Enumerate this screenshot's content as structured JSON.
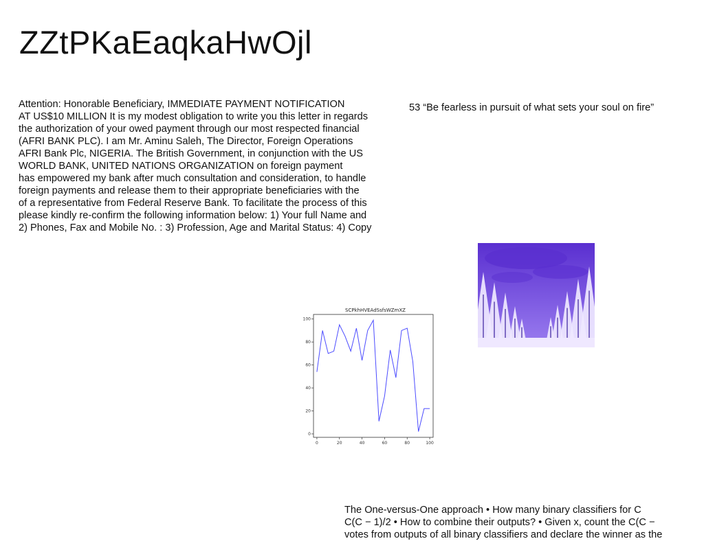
{
  "title": "ZZtPKaEaqkaHwOjl",
  "letter": {
    "lines": [
      "Attention: Honorable Beneficiary, IMMEDIATE PAYMENT NOTIFICATION",
      "AT US$10 MILLION It is my modest obligation to write you this letter in regards",
      "the authorization of your owed payment through our most respected financial",
      "(AFRI BANK PLC). I am Mr. Aminu Saleh, The Director, Foreign Operations",
      "AFRI Bank Plc, NIGERIA. The British Government, in conjunction with the US",
      "WORLD BANK, UNITED NATIONS ORGANIZATION on foreign payment",
      "has empowered my bank after much consultation and consideration, to handle",
      "foreign payments and release them to their appropriate beneficiaries with the",
      "of a representative from Federal Reserve Bank. To facilitate the process of this",
      "please kindly re-confirm the following information below: 1) Your full Name and",
      "2) Phones, Fax and Mobile No. : 3) Profession, Age and Marital Status: 4) Copy"
    ]
  },
  "quote": "53 “Be fearless in pursuit of what sets your soul on fire”",
  "ovo": {
    "lines": [
      "The One-versus-One approach • How many binary classifiers for C",
      "C(C − 1)/2 • How to combine their outputs? • Given x, count the C(C −",
      "votes from outputs of all binary classifiers and declare the winner as the"
    ]
  },
  "chart_data": {
    "type": "line",
    "title": "SCPkhHVEAdSsfsWZmXZ",
    "xlabel": "",
    "ylabel": "",
    "xlim": [
      -3,
      103
    ],
    "ylim": [
      -3,
      104
    ],
    "xticks": [
      0,
      20,
      40,
      60,
      80,
      100
    ],
    "yticks": [
      0,
      20,
      40,
      60,
      80,
      100
    ],
    "grid": false,
    "color": "#4b4bff",
    "x": [
      0,
      5,
      10,
      15,
      20,
      25,
      30,
      35,
      40,
      45,
      50,
      55,
      60,
      65,
      70,
      75,
      80,
      85,
      90,
      95,
      100
    ],
    "y": [
      54,
      90,
      70,
      72,
      95,
      85,
      72,
      92,
      64,
      90,
      99,
      11,
      33,
      73,
      49,
      90,
      92,
      63,
      2,
      22,
      22
    ]
  },
  "photo": {
    "colors": {
      "sky": "#9b7ef0",
      "cloud": "#5a2fd0",
      "snow": "#efe8ff",
      "shadow": "#3a1f9c"
    }
  }
}
